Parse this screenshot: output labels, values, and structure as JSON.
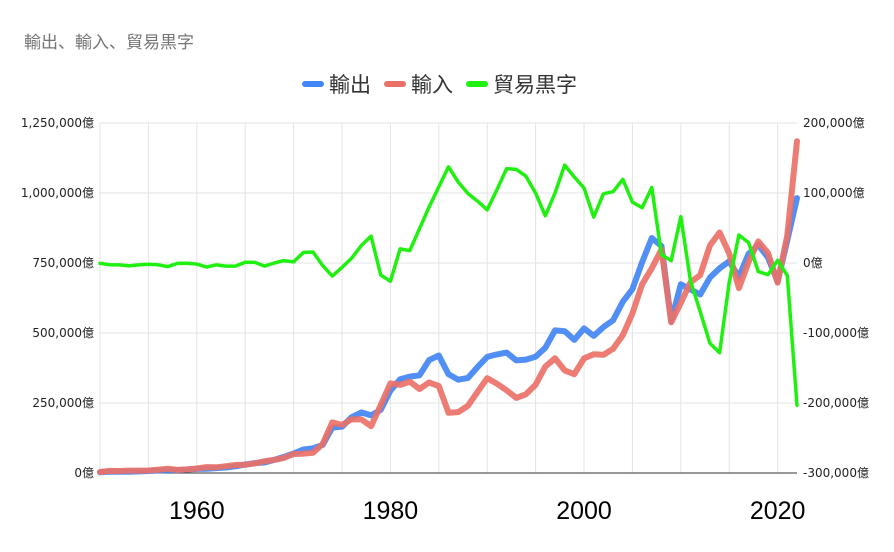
{
  "chart_data": {
    "type": "line",
    "title": "輸出、輸入、貿易黒字",
    "legend_position": "top",
    "grid": true,
    "x": [
      1950,
      1951,
      1952,
      1953,
      1954,
      1955,
      1956,
      1957,
      1958,
      1959,
      1960,
      1961,
      1962,
      1963,
      1964,
      1965,
      1966,
      1967,
      1968,
      1969,
      1970,
      1971,
      1972,
      1973,
      1974,
      1975,
      1976,
      1977,
      1978,
      1979,
      1980,
      1981,
      1982,
      1983,
      1984,
      1985,
      1986,
      1987,
      1988,
      1989,
      1990,
      1991,
      1992,
      1993,
      1994,
      1995,
      1996,
      1997,
      1998,
      1999,
      2000,
      2001,
      2002,
      2003,
      2004,
      2005,
      2006,
      2007,
      2008,
      2009,
      2010,
      2011,
      2012,
      2013,
      2014,
      2015,
      2016,
      2017,
      2018,
      2019,
      2020,
      2021,
      2022
    ],
    "xlim": [
      1950,
      2022
    ],
    "x_ticks": [
      "1960",
      "1980",
      "2000",
      "2020"
    ],
    "y_left": {
      "lim": [
        0,
        1250000
      ],
      "ticks": [
        "0億",
        "250,000億",
        "500,000億",
        "750,000億",
        "1,000,000億",
        "1,250,000億"
      ]
    },
    "y_right": {
      "lim": [
        -300000,
        200000
      ],
      "ticks": [
        "-300,000億",
        "-200,000億",
        "-100,000億",
        "0億",
        "100,000億",
        "200,000億"
      ]
    },
    "series": [
      {
        "name": "輸出",
        "axis": "left",
        "color": "#4285f4",
        "values": [
          2980,
          4881,
          4582,
          4589,
          5864,
          7238,
          9008,
          10290,
          10370,
          12440,
          14600,
          15250,
          17620,
          19640,
          24020,
          30430,
          35190,
          37590,
          46750,
          57560,
          69550,
          84070,
          88060,
          100310,
          162080,
          165450,
          199340,
          216480,
          205560,
          225310,
          293820,
          334690,
          344330,
          349090,
          403250,
          419560,
          352900,
          333150,
          339390,
          378230,
          414570,
          423600,
          430120,
          402020,
          404980,
          415310,
          447310,
          509380,
          506450,
          475480,
          516540,
          489790,
          521090,
          545480,
          611700,
          656560,
          752460,
          839270,
          810180,
          541710,
          673996,
          655465,
          637476,
          697742,
          730930,
          756139,
          700358,
          782865,
          814788,
          769317,
          683991,
          830914,
          981736
        ]
      },
      {
        "name": "輸入",
        "axis": "left",
        "color": "#ea7168",
        "values": [
          3482,
          7365,
          7300,
          8681,
          8606,
          8897,
          11630,
          15430,
          10950,
          12920,
          16170,
          20990,
          20290,
          24130,
          28440,
          29410,
          34270,
          41990,
          46750,
          54090,
          67970,
          69100,
          72290,
          104040,
          180760,
          171700,
          192290,
          191320,
          167280,
          242450,
          319950,
          314580,
          326560,
          300150,
          323210,
          310850,
          215510,
          217370,
          240060,
          289790,
          338550,
          319000,
          295270,
          268260,
          281040,
          315490,
          379930,
          409560,
          366540,
          352680,
          409380,
          424160,
          422270,
          443620,
          492170,
          569490,
          673440,
          731360,
          798500,
          538210,
          607650,
          681111,
          706886,
          812425,
          859091,
          784055,
          660420,
          753792,
          827033,
          785995,
          680108,
          848750,
          1185032
        ]
      },
      {
        "name": "貿易黒字",
        "axis": "right",
        "color": "#20f010",
        "values": [
          -502,
          -2484,
          -2718,
          -4092,
          -2742,
          -1659,
          -2622,
          -5140,
          -580,
          -480,
          -1570,
          -5740,
          -2670,
          -4490,
          -4420,
          1020,
          920,
          -4400,
          0,
          3470,
          1580,
          14970,
          15770,
          -3730,
          -18680,
          -6250,
          7050,
          25160,
          38280,
          -17140,
          -26130,
          20110,
          17770,
          48940,
          80040,
          108710,
          137390,
          115780,
          99330,
          88440,
          76020,
          104600,
          134850,
          133760,
          123940,
          99820,
          67380,
          99820,
          139910,
          122800,
          107160,
          65630,
          98820,
          101860,
          119530,
          87070,
          79020,
          107910,
          11680,
          3500,
          66346,
          -25646,
          -69410,
          -114683,
          -128161,
          -27916,
          39938,
          29073,
          -12245,
          -16678,
          3883,
          -17836,
          -203296
        ]
      }
    ]
  }
}
